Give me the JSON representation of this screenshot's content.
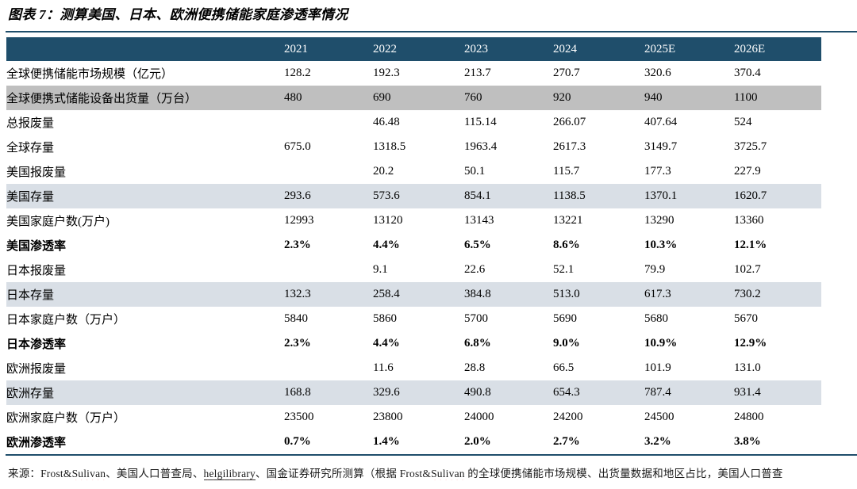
{
  "title": "图表 7：测算美国、日本、欧洲便携储能家庭渗透率情况",
  "colors": {
    "header_bg": "#1F4E6B",
    "gray_row": "#BFBFBF",
    "blue_row": "#D9DFE6",
    "rule": "#1F4E6B",
    "spellcheck_wavy": "#FF4D4D"
  },
  "chart_data": {
    "type": "table",
    "title": "图表 7：测算美国、日本、欧洲便携储能家庭渗透率情况",
    "columns": [
      "",
      "2021",
      "2022",
      "2023",
      "2024",
      "2025E",
      "2026E"
    ],
    "rows": [
      {
        "label": "全球便携储能市场规模（亿元）",
        "values": [
          "128.2",
          "192.3",
          "213.7",
          "270.7",
          "320.6",
          "370.4"
        ],
        "style": "plain"
      },
      {
        "label": "全球便携式储能设备出货量（万台）",
        "values": [
          "480",
          "690",
          "760",
          "920",
          "940",
          "1100"
        ],
        "style": "gray"
      },
      {
        "label": "总报废量",
        "values": [
          "",
          "46.48",
          "115.14",
          "266.07",
          "407.64",
          "524"
        ],
        "style": "plain"
      },
      {
        "label": "全球存量",
        "values": [
          "675.0",
          "1318.5",
          "1963.4",
          "2617.3",
          "3149.7",
          "3725.7"
        ],
        "style": "plain"
      },
      {
        "label": "美国报废量",
        "values": [
          "",
          "20.2",
          "50.1",
          "115.7",
          "177.3",
          "227.9"
        ],
        "style": "plain"
      },
      {
        "label": "美国存量",
        "values": [
          "293.6",
          "573.6",
          "854.1",
          "1138.5",
          "1370.1",
          "1620.7"
        ],
        "style": "blue"
      },
      {
        "label": "美国家庭户数(万户)",
        "values": [
          "12993",
          "13120",
          "13143",
          "13221",
          "13290",
          "13360"
        ],
        "style": "plain"
      },
      {
        "label": "美国渗透率",
        "values": [
          "2.3%",
          "4.4%",
          "6.5%",
          "8.6%",
          "10.3%",
          "12.1%"
        ],
        "style": "bold"
      },
      {
        "label": "日本报废量",
        "values": [
          "",
          "9.1",
          "22.6",
          "52.1",
          "79.9",
          "102.7"
        ],
        "style": "plain"
      },
      {
        "label": "日本存量",
        "values": [
          "132.3",
          "258.4",
          "384.8",
          "513.0",
          "617.3",
          "730.2"
        ],
        "style": "blue"
      },
      {
        "label": "日本家庭户数（万户）",
        "values": [
          "5840",
          "5860",
          "5700",
          "5690",
          "5680",
          "5670"
        ],
        "style": "plain"
      },
      {
        "label": "日本渗透率",
        "values": [
          "2.3%",
          "4.4%",
          "6.8%",
          "9.0%",
          "10.9%",
          "12.9%"
        ],
        "style": "bold"
      },
      {
        "label": "欧洲报废量",
        "values": [
          "",
          "11.6",
          "28.8",
          "66.5",
          "101.9",
          "131.0"
        ],
        "style": "plain"
      },
      {
        "label": "欧洲存量",
        "values": [
          "168.8",
          "329.6",
          "490.8",
          "654.3",
          "787.4",
          "931.4"
        ],
        "style": "blue"
      },
      {
        "label": "欧洲家庭户数（万户）",
        "values": [
          "23500",
          "23800",
          "24000",
          "24200",
          "24500",
          "24800"
        ],
        "style": "plain"
      },
      {
        "label": "欧洲渗透率",
        "values": [
          "0.7%",
          "1.4%",
          "2.0%",
          "2.7%",
          "3.2%",
          "3.8%"
        ],
        "style": "bold"
      }
    ]
  },
  "footer": {
    "segments": [
      {
        "text": "来源：Frost&",
        "underline": "none"
      },
      {
        "text": "Sulivan",
        "underline": "wavy"
      },
      {
        "text": "、美国人口普查局、",
        "underline": "none"
      },
      {
        "text": "helgilibrary",
        "underline": "solid-wavy"
      },
      {
        "text": "、",
        "underline": "none"
      },
      {
        "text": "国金",
        "underline": "wavy"
      },
      {
        "text": "证券研究所测算（根据 Frost&",
        "underline": "none"
      },
      {
        "text": "Sulivan",
        "underline": "wavy"
      },
      {
        "text": " 的全球便携储能市场规模、出货量数据和地区占比，美国人口普查",
        "underline": "none"
      }
    ]
  }
}
